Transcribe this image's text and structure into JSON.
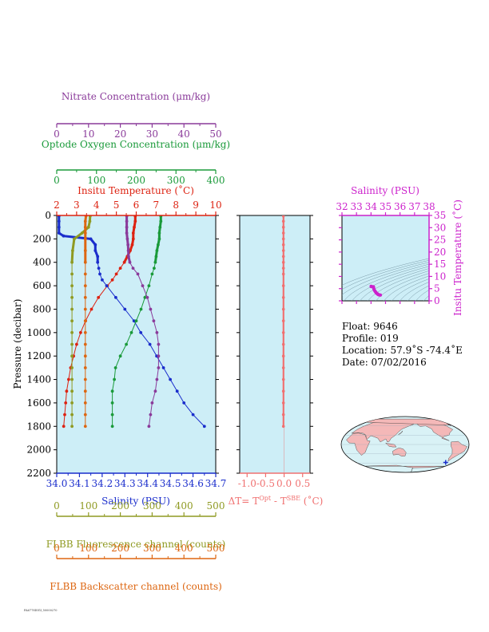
{
  "colors": {
    "panel_bg": "#cdeef7",
    "temperature": "#dd2211",
    "salinity": "#1a2dcc",
    "oxygen": "#1a9a3a",
    "nitrate": "#8a3a9a",
    "fluorescence": "#8f9a22",
    "backscatter": "#dd6611",
    "delta_t": "#f07070",
    "ts_axis": "#cc22cc",
    "ts_bg": "#cdeef7",
    "land": "#f4b8b8",
    "ocean": "#d9f2f6"
  },
  "float_info": {
    "float": "Float:  9646",
    "profile": "Profile:  019",
    "location": "Location:  57.9˚S  -74.4˚E",
    "date": "Date:  07/02/2016"
  },
  "footer_text": "FA6778DIGI_50000270",
  "chart_data": [
    {
      "type": "line",
      "title": "",
      "ylabel": "Pressure (decibar)",
      "ylim": [
        2200,
        0
      ],
      "yticks": [
        0,
        200,
        400,
        600,
        800,
        1000,
        1200,
        1400,
        1600,
        1800,
        2000,
        2200
      ],
      "axes": {
        "nitrate": {
          "label": "Nitrate Concentration (μm/kg)",
          "ticks": [
            0,
            10,
            20,
            30,
            40,
            50
          ],
          "lim": [
            0,
            50
          ]
        },
        "oxygen": {
          "label": "Optode Oxygen Concentration (μm/kg)",
          "ticks": [
            0,
            100,
            200,
            300,
            400
          ],
          "lim": [
            0,
            400
          ]
        },
        "temperature": {
          "label": "Insitu Temperature (˚C)",
          "ticks": [
            2,
            3,
            4,
            5,
            6,
            7,
            8,
            9,
            10
          ],
          "lim": [
            2,
            10
          ]
        },
        "salinity": {
          "label": "Salinity (PSU)",
          "ticks": [
            34.0,
            34.1,
            34.2,
            34.3,
            34.4,
            34.5,
            34.6,
            34.7
          ],
          "tick_labels": [
            "34.0",
            "34.1",
            "34.2",
            "34.3",
            "34.4",
            "34.5",
            "34.6",
            "34.7"
          ],
          "lim": [
            34.0,
            34.7
          ]
        },
        "fluorescence": {
          "label": "FLBB Fluorescence channel (counts)",
          "ticks": [
            0,
            100,
            200,
            300,
            400,
            500
          ],
          "lim": [
            0,
            500
          ]
        },
        "backscatter": {
          "label": "FLBB Backscatter channel (counts)",
          "ticks": [
            0,
            100,
            200,
            300,
            400,
            500
          ],
          "lim": [
            0,
            500
          ]
        }
      },
      "series": [
        {
          "key": "temperature",
          "name": "Insitu Temperature",
          "pressure": [
            5,
            50,
            100,
            150,
            200,
            250,
            300,
            350,
            400,
            450,
            500,
            550,
            600,
            700,
            800,
            900,
            1000,
            1100,
            1200,
            1300,
            1400,
            1500,
            1600,
            1700,
            1800
          ],
          "values": [
            5.95,
            5.95,
            5.9,
            5.85,
            5.85,
            5.8,
            5.7,
            5.55,
            5.4,
            5.2,
            5.0,
            4.8,
            4.55,
            4.1,
            3.75,
            3.45,
            3.2,
            3.0,
            2.85,
            2.7,
            2.6,
            2.5,
            2.45,
            2.4,
            2.35
          ]
        },
        {
          "key": "salinity",
          "name": "Salinity",
          "pressure": [
            5,
            50,
            100,
            150,
            175,
            200,
            250,
            300,
            350,
            400,
            450,
            500,
            550,
            600,
            700,
            800,
            900,
            1000,
            1100,
            1200,
            1300,
            1400,
            1500,
            1600,
            1700,
            1800
          ],
          "values": [
            34.01,
            34.01,
            34.01,
            34.01,
            34.03,
            34.15,
            34.17,
            34.17,
            34.18,
            34.18,
            34.185,
            34.19,
            34.2,
            34.22,
            34.26,
            34.3,
            34.34,
            34.37,
            34.41,
            34.44,
            34.47,
            34.5,
            34.53,
            34.56,
            34.6,
            34.65
          ]
        },
        {
          "key": "oxygen",
          "name": "Optode Oxygen Concentration",
          "pressure": [
            5,
            50,
            100,
            150,
            200,
            250,
            300,
            350,
            400,
            450,
            500,
            600,
            700,
            800,
            900,
            1000,
            1100,
            1200,
            1300,
            1400,
            1500,
            1600,
            1700,
            1800
          ],
          "values": [
            262,
            262,
            260,
            258,
            258,
            255,
            252,
            250,
            248,
            245,
            240,
            232,
            222,
            212,
            200,
            188,
            175,
            160,
            148,
            145,
            140,
            140,
            140,
            140
          ]
        },
        {
          "key": "nitrate",
          "name": "Nitrate Concentration",
          "pressure": [
            5,
            50,
            100,
            150,
            200,
            250,
            300,
            350,
            400,
            450,
            500,
            600,
            700,
            800,
            900,
            1000,
            1100,
            1200,
            1300,
            1400,
            1500,
            1600,
            1700,
            1800
          ],
          "values": [
            22.0,
            22.0,
            22.0,
            22.0,
            22.2,
            22.4,
            22.5,
            22.6,
            23.0,
            24.0,
            25.5,
            27.0,
            28.5,
            29.5,
            30.5,
            31.5,
            32.0,
            32.0,
            32.0,
            31.5,
            31.0,
            30.0,
            29.5,
            29.0
          ]
        },
        {
          "key": "fluorescence",
          "name": "FLBB Fluorescence channel",
          "pressure": [
            5,
            50,
            100,
            150,
            200,
            300,
            400,
            500,
            600,
            700,
            800,
            900,
            1000,
            1100,
            1200,
            1300,
            1400,
            1500,
            1600,
            1700,
            1800
          ],
          "values": [
            105,
            104,
            100,
            80,
            55,
            50,
            48,
            48,
            48,
            48,
            48,
            48,
            48,
            48,
            48,
            48,
            48,
            48,
            48,
            48,
            48
          ]
        },
        {
          "key": "backscatter",
          "name": "FLBB Backscatter channel",
          "pressure": [
            5,
            50,
            100,
            150,
            200,
            300,
            400,
            500,
            600,
            700,
            800,
            900,
            1000,
            1100,
            1200,
            1300,
            1400,
            1500,
            1600,
            1700,
            1800
          ],
          "values": [
            92,
            90,
            90,
            90,
            90,
            90,
            90,
            90,
            90,
            90,
            90,
            90,
            90,
            90,
            90,
            90,
            90,
            90,
            90,
            90,
            90
          ]
        }
      ]
    },
    {
      "type": "line",
      "title": "",
      "xlabel_html": [
        "ΔT= T",
        "Opt",
        " - T",
        "SBE",
        " (˚C)"
      ],
      "xlim": [
        -1.2,
        0.7
      ],
      "xticks": [
        -1.0,
        -0.5,
        0.0,
        0.5
      ],
      "xtick_labels": [
        "-1.0",
        "-0.5",
        "0.0",
        "0.5"
      ],
      "ylim": [
        2200,
        0
      ],
      "series": [
        {
          "name": "ΔT",
          "pressure": [
            5,
            50,
            100,
            150,
            200,
            250,
            300,
            350,
            400,
            450,
            500,
            600,
            700,
            800,
            900,
            1000,
            1100,
            1200,
            1300,
            1400,
            1500,
            1600,
            1700,
            1800
          ],
          "values": [
            -0.02,
            -0.02,
            -0.02,
            -0.02,
            -0.02,
            -0.02,
            -0.02,
            -0.02,
            -0.02,
            -0.02,
            -0.02,
            -0.02,
            -0.02,
            -0.02,
            -0.02,
            -0.02,
            -0.02,
            -0.02,
            -0.02,
            -0.02,
            -0.02,
            -0.02,
            -0.02,
            -0.02
          ]
        }
      ]
    },
    {
      "type": "scatter",
      "title": "",
      "xlabel": "Salinity (PSU)",
      "ylabel": "Insitu Temperature (˚C)",
      "xlim": [
        32,
        38
      ],
      "ylim": [
        0,
        35
      ],
      "xticks": [
        32,
        33,
        34,
        35,
        36,
        37,
        38
      ],
      "yticks": [
        0,
        5,
        10,
        15,
        20,
        25,
        30,
        35
      ],
      "x": [
        34.01,
        34.01,
        34.02,
        34.03,
        34.15,
        34.17,
        34.18,
        34.19,
        34.22,
        34.26,
        34.3,
        34.34,
        34.37,
        34.41,
        34.44,
        34.47,
        34.5,
        34.53,
        34.56,
        34.6,
        34.65
      ],
      "y": [
        5.95,
        5.9,
        5.85,
        5.85,
        5.8,
        5.7,
        5.4,
        5.0,
        4.55,
        4.1,
        3.75,
        3.45,
        3.2,
        3.0,
        2.85,
        2.7,
        2.6,
        2.5,
        2.45,
        2.4,
        2.35
      ]
    },
    {
      "type": "map",
      "title": "",
      "float_position": {
        "lat": -57.9,
        "lon": -74.4
      }
    }
  ]
}
